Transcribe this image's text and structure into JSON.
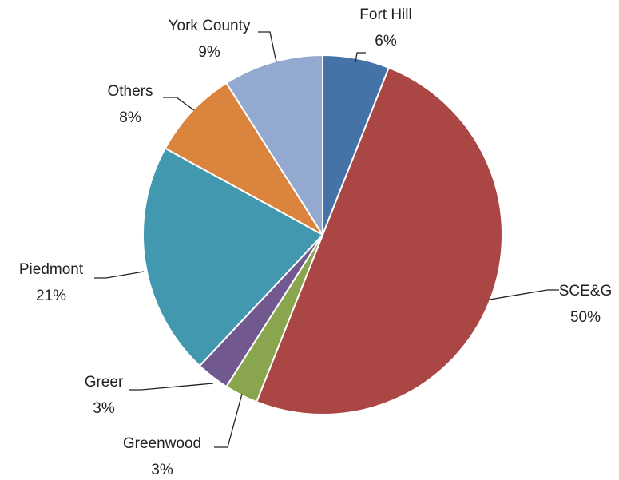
{
  "chart_data": {
    "type": "pie",
    "slices": [
      {
        "label": "Fort Hill",
        "value": 6,
        "value_label": "6%",
        "color": "#4572A7"
      },
      {
        "label": "SCE&G",
        "value": 50,
        "value_label": "50%",
        "color": "#AA4643"
      },
      {
        "label": "Greenwood",
        "value": 3,
        "value_label": "3%",
        "color": "#89A54E"
      },
      {
        "label": "Greer",
        "value": 3,
        "value_label": "3%",
        "color": "#71588F"
      },
      {
        "label": "Piedmont",
        "value": 21,
        "value_label": "21%",
        "color": "#4198AF"
      },
      {
        "label": "Others",
        "value": 8,
        "value_label": "8%",
        "color": "#DB843D"
      },
      {
        "label": "York County",
        "value": 9,
        "value_label": "9%",
        "color": "#93A9CF"
      }
    ],
    "start": "12 o'clock",
    "direction": "clockwise",
    "legend": "none",
    "data_labels": "outside with leader lines"
  }
}
